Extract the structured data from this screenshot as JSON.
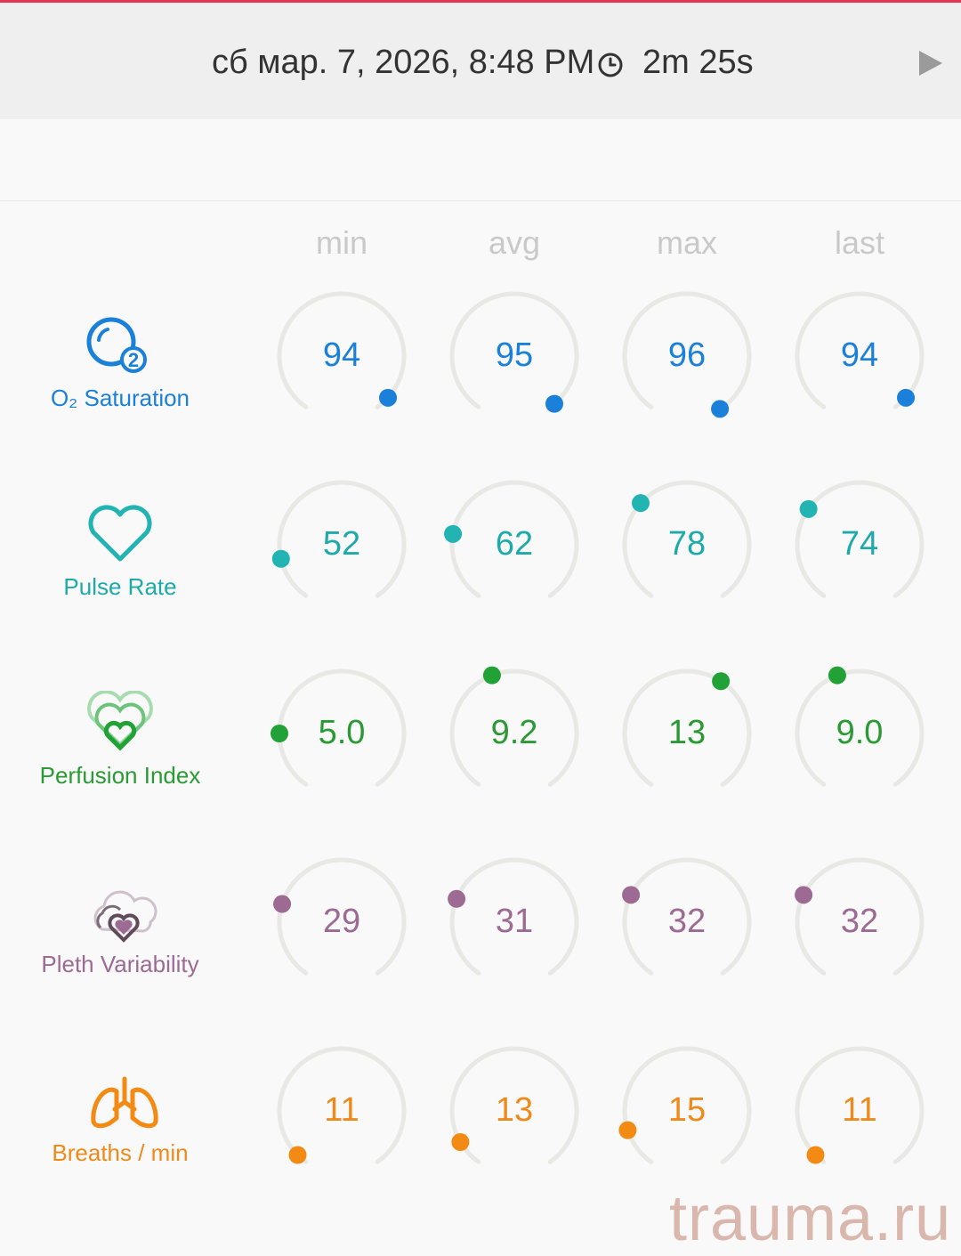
{
  "header": {
    "session_datetime": "сб мар. 7, 2026, 8:48 PM",
    "duration": "2m 25s",
    "clock_icon": "clock-icon",
    "play_icon": "play-icon"
  },
  "columns": [
    "min",
    "avg",
    "max",
    "last"
  ],
  "metrics": [
    {
      "key": "o2",
      "label": "O₂ Saturation",
      "icon": "o2-bubble-icon",
      "color": "#1a80d9",
      "text_color": "#1a80d9",
      "values": [
        "94",
        "95",
        "96",
        "94"
      ],
      "dot_angles": [
        132,
        140,
        148,
        132
      ]
    },
    {
      "key": "pulse",
      "label": "Pulse Rate",
      "icon": "heart-icon",
      "color": "#22b3b3",
      "text_color": "#1eaaaa",
      "values": [
        "52",
        "62",
        "78",
        "74"
      ],
      "dot_angles": [
        -103,
        -80,
        -48,
        -55
      ]
    },
    {
      "key": "pi",
      "label": "Perfusion Index",
      "icon": "layered-hearts-icon",
      "color": "#21a136",
      "text_color": "#2a9a34",
      "values": [
        "5.0",
        "9.2",
        "13",
        "9.0"
      ],
      "dot_angles": [
        -90,
        -21,
        33,
        -21
      ]
    },
    {
      "key": "pvi",
      "label": "Pleth Variability",
      "icon": "cloud-heart-icon",
      "color": "#9c6a93",
      "text_color": "#9c6a93",
      "values": [
        "29",
        "31",
        "32",
        "32"
      ],
      "dot_angles": [
        -73,
        -68,
        -64,
        -64
      ]
    },
    {
      "key": "rr",
      "label": "Breaths / min",
      "icon": "lungs-icon",
      "color": "#f38a14",
      "text_color": "#ee8a1a",
      "values": [
        "11",
        "13",
        "15",
        "11"
      ],
      "dot_angles": [
        -135,
        -120,
        -108,
        -135
      ]
    }
  ],
  "watermark": "trauma.ru"
}
